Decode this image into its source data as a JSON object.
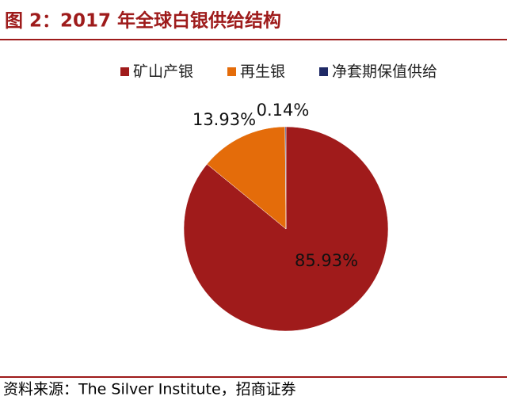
{
  "chart_data": {
    "type": "pie",
    "title": "图 2：2017 年全球白银供给结构",
    "categories": [
      "矿山产银",
      "再生银",
      "净套期保值供给"
    ],
    "values": [
      85.93,
      13.93,
      0.14
    ],
    "value_labels": [
      "85.93%",
      "13.93%",
      "0.14%"
    ],
    "colors": [
      "#a01b1b",
      "#e46c0a",
      "#1f2a66"
    ],
    "source": "资料来源：The Silver Institute，招商证券"
  }
}
